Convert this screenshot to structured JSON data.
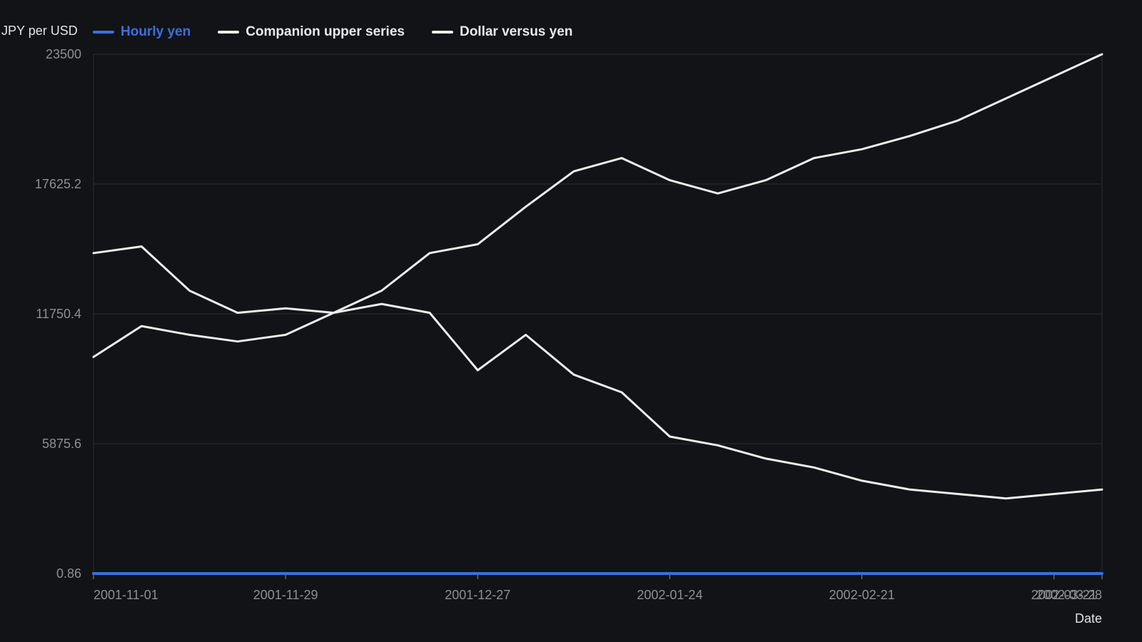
{
  "chart_data": {
    "type": "line",
    "title": "",
    "xlabel": "Date",
    "ylabel": "JPY per USD",
    "ylim": [
      0.86,
      23500
    ],
    "yticks": [
      "0.86",
      "5875.6",
      "11750.4",
      "17625.2",
      "23500"
    ],
    "xticks": [
      "2001-11-01",
      "2001-11-29",
      "2001-12-27",
      "2002-01-24",
      "2002-02-21",
      "2002-03-21",
      "2002-03-28"
    ],
    "x": [
      "2001-11-01",
      "2001-11-08",
      "2001-11-15",
      "2001-11-22",
      "2001-11-29",
      "2001-12-06",
      "2001-12-13",
      "2001-12-20",
      "2001-12-27",
      "2002-01-03",
      "2002-01-10",
      "2002-01-17",
      "2002-01-24",
      "2002-01-31",
      "2002-02-07",
      "2002-02-14",
      "2002-02-21",
      "2002-02-28",
      "2002-03-07",
      "2002-03-14",
      "2002-03-21",
      "2002-03-28"
    ],
    "series": [
      {
        "name": "Hourly yen",
        "color": "#3b6fe0",
        "values": [
          0.86,
          0.86,
          0.86,
          0.86,
          0.86,
          0.86,
          0.86,
          0.86,
          0.86,
          0.86,
          0.86,
          0.86,
          0.86,
          0.86,
          0.86,
          0.86,
          0.86,
          0.86,
          0.86,
          0.86,
          0.86,
          0.86
        ]
      },
      {
        "name": "Companion upper series",
        "color": "#ededed",
        "values": [
          9800,
          11200,
          10800,
          10500,
          10800,
          11800,
          12800,
          14500,
          14900,
          16600,
          18200,
          18800,
          17800,
          17200,
          17800,
          18800,
          19200,
          19800,
          20500,
          21500,
          22500,
          23500
        ]
      },
      {
        "name": "Dollar versus yen",
        "color": "#ededed",
        "values": [
          14500,
          14800,
          12800,
          11800,
          12000,
          11800,
          12200,
          11800,
          9200,
          10800,
          9000,
          8200,
          6200,
          5800,
          5200,
          4800,
          4200,
          3800,
          3600,
          3400,
          3600,
          3800
        ]
      }
    ],
    "grid": true,
    "legend_position": "top-left",
    "background": "#121316",
    "grid_color": "#2a2c31"
  }
}
